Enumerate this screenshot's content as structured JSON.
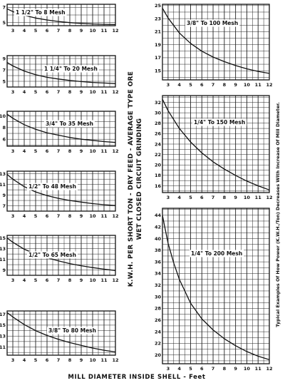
{
  "figure": {
    "ylabel_line1": "K.W.H. PER SHORT TON - DRY FEED - AVERAGE TYPE ORE",
    "ylabel_line2": "WET CLOSED CIRCUIT GRINDING",
    "xlabel": "MILL DIAMETER INSIDE SHELL - Feet",
    "side_note": "Typical Examples Of How Power (K.W.H./Ton) Decreases With Increase Of Mill Diameter."
  },
  "chart_data": [
    {
      "type": "line",
      "title": "1 1/2\" To 8 Mesh",
      "xlim": [
        2.5,
        12
      ],
      "ylim": [
        4.6,
        7.4
      ],
      "xticks": [
        3,
        4,
        5,
        6,
        7,
        8,
        9,
        10,
        11,
        12
      ],
      "yticks": [
        5,
        7
      ],
      "x": [
        2.5,
        3,
        4,
        5,
        6,
        7,
        8,
        9,
        10,
        11,
        12
      ],
      "y": [
        6.8,
        6.45,
        5.95,
        5.6,
        5.35,
        5.15,
        5.0,
        4.9,
        4.82,
        4.78,
        4.75
      ]
    },
    {
      "type": "line",
      "title": "1 1/4\" To 20 Mesh",
      "xlim": [
        2.5,
        12
      ],
      "ylim": [
        4,
        9.5
      ],
      "xticks": [
        3,
        4,
        5,
        6,
        7,
        8,
        9,
        10,
        11,
        12
      ],
      "yticks": [
        5,
        7,
        9
      ],
      "x": [
        2.5,
        3,
        4,
        5,
        6,
        7,
        8,
        9,
        10,
        11,
        12
      ],
      "y": [
        8.3,
        7.7,
        6.8,
        6.15,
        5.7,
        5.4,
        5.15,
        4.95,
        4.8,
        4.7,
        4.6
      ]
    },
    {
      "type": "line",
      "title": "3/4\" To 35 Mesh",
      "xlim": [
        2.5,
        12
      ],
      "ylim": [
        4.8,
        10.8
      ],
      "xticks": [
        3,
        4,
        5,
        6,
        7,
        8,
        9,
        10,
        11,
        12
      ],
      "yticks": [
        6,
        8,
        10
      ],
      "x": [
        2.5,
        3,
        4,
        5,
        6,
        7,
        8,
        9,
        10,
        11,
        12
      ],
      "y": [
        10.3,
        9.6,
        8.5,
        7.7,
        7.1,
        6.7,
        6.3,
        6.0,
        5.8,
        5.6,
        5.45
      ]
    },
    {
      "type": "line",
      "title": "1/2\" To 48 Mesh",
      "xlim": [
        2.5,
        12
      ],
      "ylim": [
        6,
        13.5
      ],
      "xticks": [
        3,
        4,
        5,
        6,
        7,
        8,
        9,
        10,
        11,
        12
      ],
      "yticks": [
        7,
        9,
        11,
        13
      ],
      "x": [
        2.5,
        3,
        4,
        5,
        6,
        7,
        8,
        9,
        10,
        11,
        12
      ],
      "y": [
        12.9,
        12.0,
        10.6,
        9.6,
        8.9,
        8.4,
        8.0,
        7.7,
        7.4,
        7.2,
        7.05
      ]
    },
    {
      "type": "line",
      "title": "1/2\" To 65 Mesh",
      "xlim": [
        2.5,
        12
      ],
      "ylim": [
        8,
        15.5
      ],
      "xticks": [
        3,
        4,
        5,
        6,
        7,
        8,
        9,
        10,
        11,
        12
      ],
      "yticks": [
        9,
        11,
        13,
        15
      ],
      "x": [
        2.5,
        3,
        4,
        5,
        6,
        7,
        8,
        9,
        10,
        11,
        12
      ],
      "y": [
        15.0,
        14.2,
        12.9,
        12.0,
        11.3,
        10.7,
        10.2,
        9.8,
        9.45,
        9.15,
        8.9
      ]
    },
    {
      "type": "line",
      "title": "3/8\" To 80 Mesh",
      "xlim": [
        2.5,
        12
      ],
      "ylim": [
        9.5,
        17.6
      ],
      "xticks": [
        3,
        4,
        5,
        6,
        7,
        8,
        9,
        10,
        11,
        12
      ],
      "yticks": [
        11,
        13,
        15,
        17
      ],
      "x": [
        2.5,
        3,
        4,
        5,
        6,
        7,
        8,
        9,
        10,
        11,
        12
      ],
      "y": [
        17.3,
        16.5,
        15.1,
        14.0,
        13.1,
        12.4,
        11.8,
        11.3,
        10.8,
        10.4,
        10.1
      ]
    },
    {
      "type": "line",
      "title": "3/8\" To 100 Mesh",
      "xlim": [
        2.5,
        12
      ],
      "ylim": [
        13.6,
        25.2
      ],
      "xticks": [
        3,
        4,
        5,
        6,
        7,
        8,
        9,
        10,
        11,
        12
      ],
      "yticks": [
        15,
        17,
        19,
        21,
        23,
        25
      ],
      "x": [
        2.5,
        3,
        4,
        5,
        6,
        7,
        8,
        9,
        10,
        11,
        12
      ],
      "y": [
        24.6,
        23.1,
        20.8,
        19.2,
        18.0,
        17.1,
        16.4,
        15.8,
        15.3,
        14.9,
        14.6
      ]
    },
    {
      "type": "line",
      "title": "1/4\" To 150 Mesh",
      "xlim": [
        2.5,
        12
      ],
      "ylim": [
        14.7,
        33.3
      ],
      "xticks": [
        3,
        4,
        5,
        6,
        7,
        8,
        9,
        10,
        11,
        12
      ],
      "yticks": [
        16,
        18,
        20,
        22,
        24,
        26,
        28,
        30,
        32
      ],
      "x": [
        2.5,
        3,
        4,
        5,
        6,
        7,
        8,
        9,
        10,
        11,
        12
      ],
      "y": [
        32.6,
        30.4,
        27.0,
        24.4,
        22.3,
        20.6,
        19.2,
        18.0,
        16.9,
        16.0,
        15.2
      ]
    },
    {
      "type": "line",
      "title": "1/4\" To 200 Mesh",
      "xlim": [
        2.5,
        12
      ],
      "ylim": [
        18.5,
        45.2
      ],
      "xticks": [
        3,
        4,
        5,
        6,
        7,
        8,
        9,
        10,
        11,
        12
      ],
      "yticks": [
        20,
        22,
        24,
        26,
        28,
        30,
        32,
        34,
        36,
        38,
        40,
        42,
        44
      ],
      "x": [
        2.5,
        2.7,
        3,
        3.5,
        4,
        5,
        6,
        7,
        8,
        9,
        10,
        11,
        12
      ],
      "y": [
        44.0,
        42.0,
        39.2,
        35.8,
        33.0,
        28.9,
        26.2,
        24.3,
        22.8,
        21.6,
        20.6,
        19.8,
        19.2
      ]
    }
  ]
}
